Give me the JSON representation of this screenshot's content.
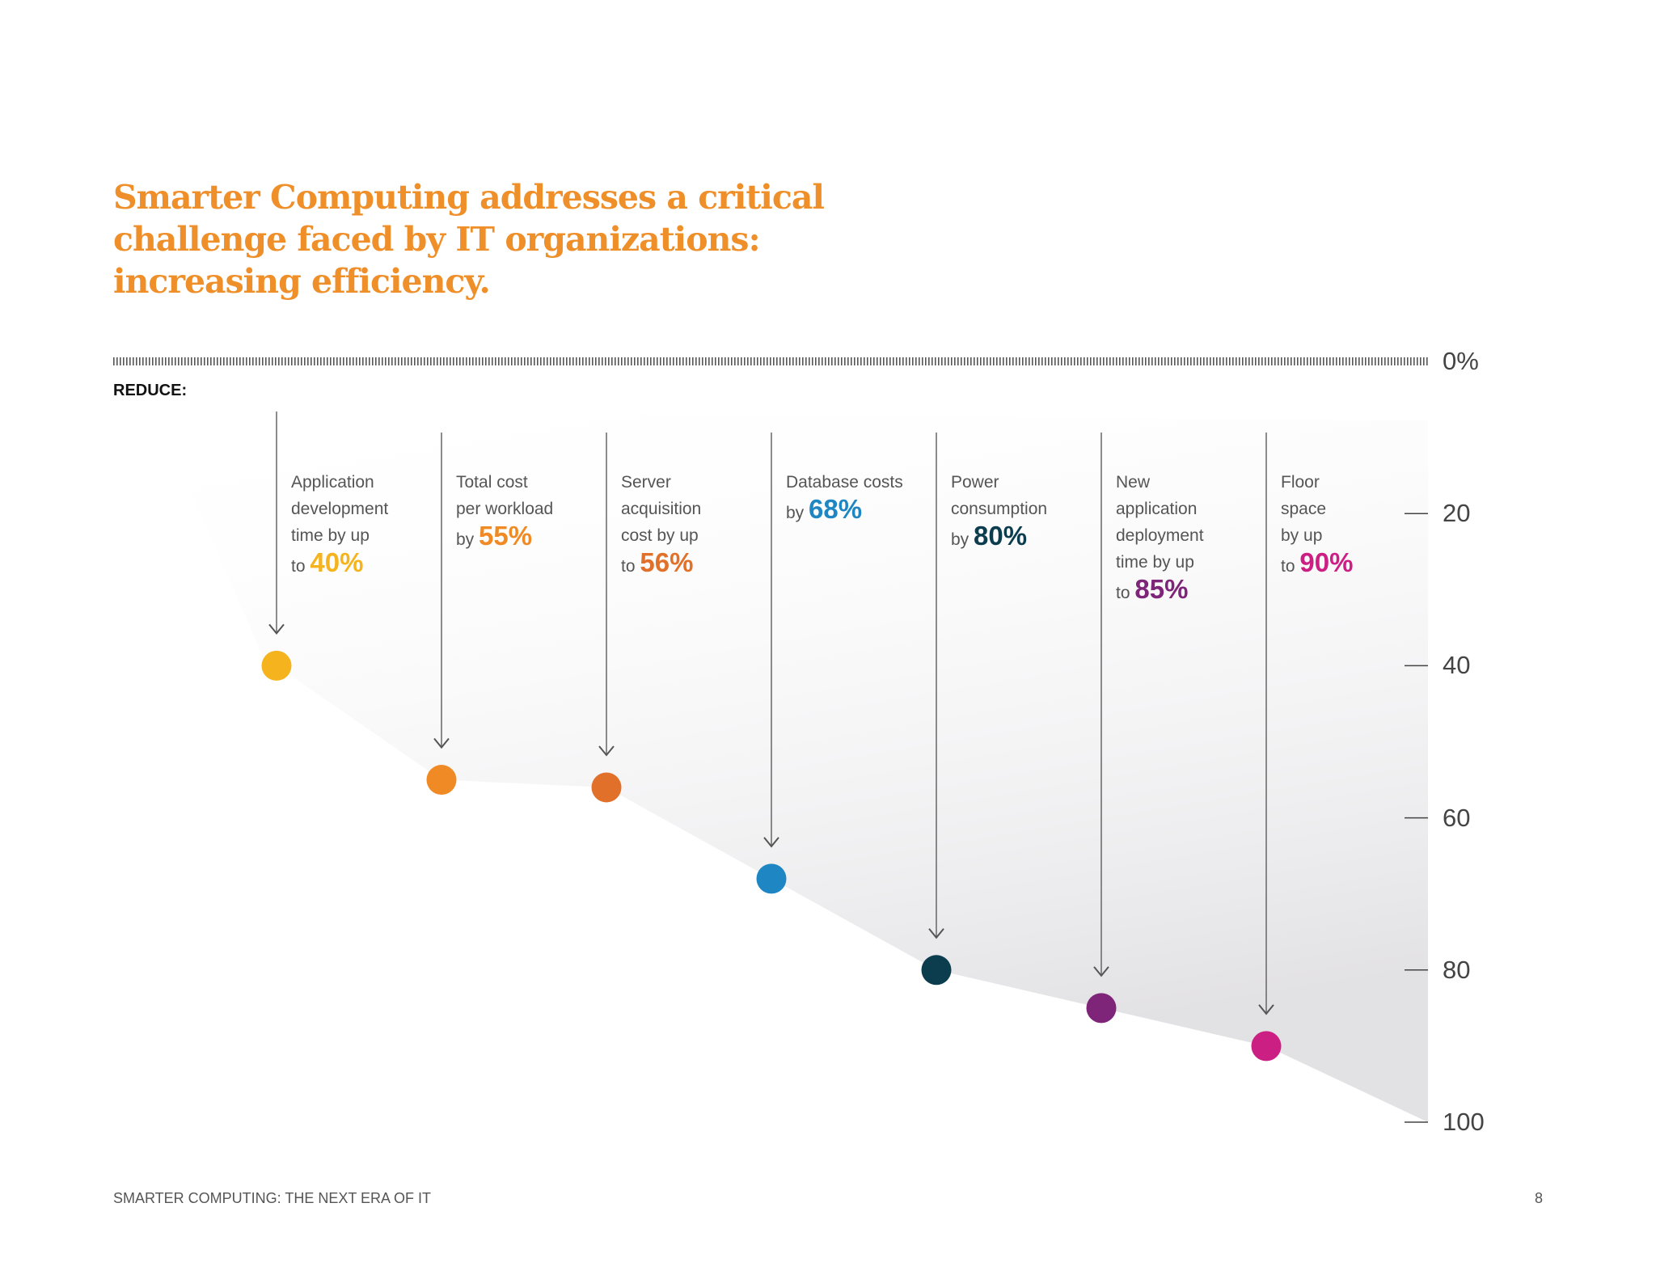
{
  "title_lines": [
    "Smarter Computing addresses a critical",
    "challenge faced by IT organizations:",
    "increasing efficiency."
  ],
  "reduce_label": "REDUCE:",
  "footer": "SMARTER COMPUTING: THE NEXT ERA OF IT",
  "page_number": "8",
  "chart_data": {
    "type": "scatter",
    "y_axis": {
      "range": [
        0,
        100
      ],
      "ticks": [
        20,
        40,
        60,
        80,
        100
      ],
      "top_label": "0%",
      "inverted": true
    },
    "points": [
      {
        "text": [
          "Application",
          "development",
          "time by up"
        ],
        "prefix": "to",
        "label": "40%",
        "value": 40,
        "color": "#f5b41e"
      },
      {
        "text": [
          "Total cost",
          "per workload"
        ],
        "prefix": "by",
        "label": "55%",
        "value": 55,
        "color": "#f08a24"
      },
      {
        "text": [
          "Server",
          "acquisition",
          "cost by up"
        ],
        "prefix": "to",
        "label": "56%",
        "value": 56,
        "color": "#e0702a"
      },
      {
        "text": [
          "Database costs"
        ],
        "prefix": "by",
        "label": "68%",
        "value": 68,
        "color": "#1e86c2"
      },
      {
        "text": [
          "Power",
          "consumption"
        ],
        "prefix": "by",
        "label": "80%",
        "value": 80,
        "color": "#0b3d4e"
      },
      {
        "text": [
          "New",
          "application",
          "deployment",
          "time by up"
        ],
        "prefix": "to",
        "label": "85%",
        "value": 85,
        "color": "#7e2479"
      },
      {
        "text": [
          "Floor",
          "space",
          "by up"
        ],
        "prefix": "to",
        "label": "90%",
        "value": 90,
        "color": "#cc1f84"
      }
    ]
  }
}
